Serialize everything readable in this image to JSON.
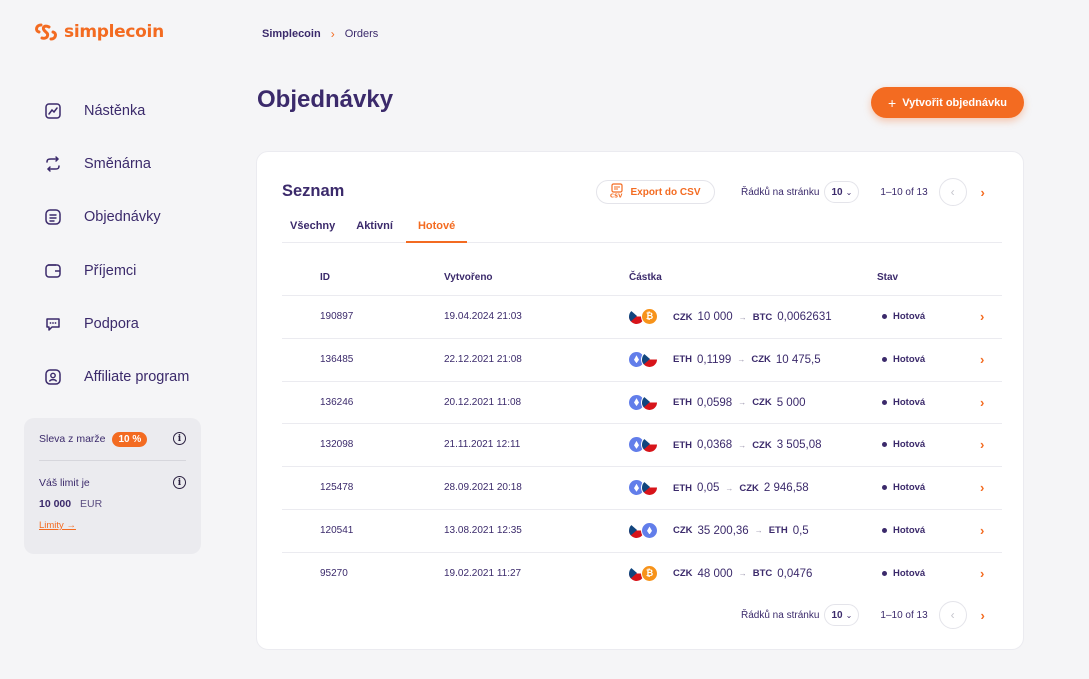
{
  "brand": {
    "name": "simplecoin",
    "accent": "#f36b21",
    "text": "#3b2a6b"
  },
  "breadcrumb": {
    "home": "Simplecoin",
    "current": "Orders"
  },
  "sidebar": {
    "items": [
      {
        "label": "Nástěnka",
        "icon": "chart-icon"
      },
      {
        "label": "Směnárna",
        "icon": "exchange-icon"
      },
      {
        "label": "Objednávky",
        "icon": "orders-icon"
      },
      {
        "label": "Příjemci",
        "icon": "wallet-icon"
      },
      {
        "label": "Podpora",
        "icon": "chat-icon"
      },
      {
        "label": "Affiliate program",
        "icon": "user-icon"
      }
    ]
  },
  "infobox": {
    "discount_label": "Sleva z marže",
    "discount_value": "10 %",
    "limit_label": "Váš limit je",
    "limit_amount": "10 000",
    "limit_currency": "EUR",
    "limits_link": "Limity →"
  },
  "page": {
    "title": "Objednávky",
    "create_button": "Vytvořit objednávku"
  },
  "card": {
    "title": "Seznam",
    "export_button": "Export do CSV",
    "rows_per_page_label": "Řádků na stránku",
    "rows_per_page_value": "10",
    "range": "1–10 of 13",
    "tabs": [
      "Všechny",
      "Aktivní",
      "Hotové"
    ],
    "active_tab": "Hotové",
    "columns": {
      "id": "ID",
      "created": "Vytvořeno",
      "amount": "Částka",
      "status": "Stav"
    },
    "rows": [
      {
        "id": "190897",
        "date": "19.04.2024 21:03",
        "from_cur": "CZK",
        "from_amt": "10 000",
        "to_cur": "BTC",
        "to_amt": "0,0062631",
        "coins": [
          "cz",
          "btc"
        ],
        "status": "Hotová"
      },
      {
        "id": "136485",
        "date": "22.12.2021 21:08",
        "from_cur": "ETH",
        "from_amt": "0,1199",
        "to_cur": "CZK",
        "to_amt": "10 475,5",
        "coins": [
          "eth",
          "cz"
        ],
        "status": "Hotová"
      },
      {
        "id": "136246",
        "date": "20.12.2021 11:08",
        "from_cur": "ETH",
        "from_amt": "0,0598",
        "to_cur": "CZK",
        "to_amt": "5 000",
        "coins": [
          "eth",
          "cz"
        ],
        "status": "Hotová"
      },
      {
        "id": "132098",
        "date": "21.11.2021 12:11",
        "from_cur": "ETH",
        "from_amt": "0,0368",
        "to_cur": "CZK",
        "to_amt": "3 505,08",
        "coins": [
          "eth",
          "cz"
        ],
        "status": "Hotová"
      },
      {
        "id": "125478",
        "date": "28.09.2021 20:18",
        "from_cur": "ETH",
        "from_amt": "0,05",
        "to_cur": "CZK",
        "to_amt": "2 946,58",
        "coins": [
          "eth",
          "cz"
        ],
        "status": "Hotová"
      },
      {
        "id": "120541",
        "date": "13.08.2021 12:35",
        "from_cur": "CZK",
        "from_amt": "35 200,36",
        "to_cur": "ETH",
        "to_amt": "0,5",
        "coins": [
          "cz",
          "eth"
        ],
        "status": "Hotová"
      },
      {
        "id": "95270",
        "date": "19.02.2021 11:27",
        "from_cur": "CZK",
        "from_amt": "48 000",
        "to_cur": "BTC",
        "to_amt": "0,0476",
        "coins": [
          "cz",
          "btc"
        ],
        "status": "Hotová"
      }
    ]
  }
}
